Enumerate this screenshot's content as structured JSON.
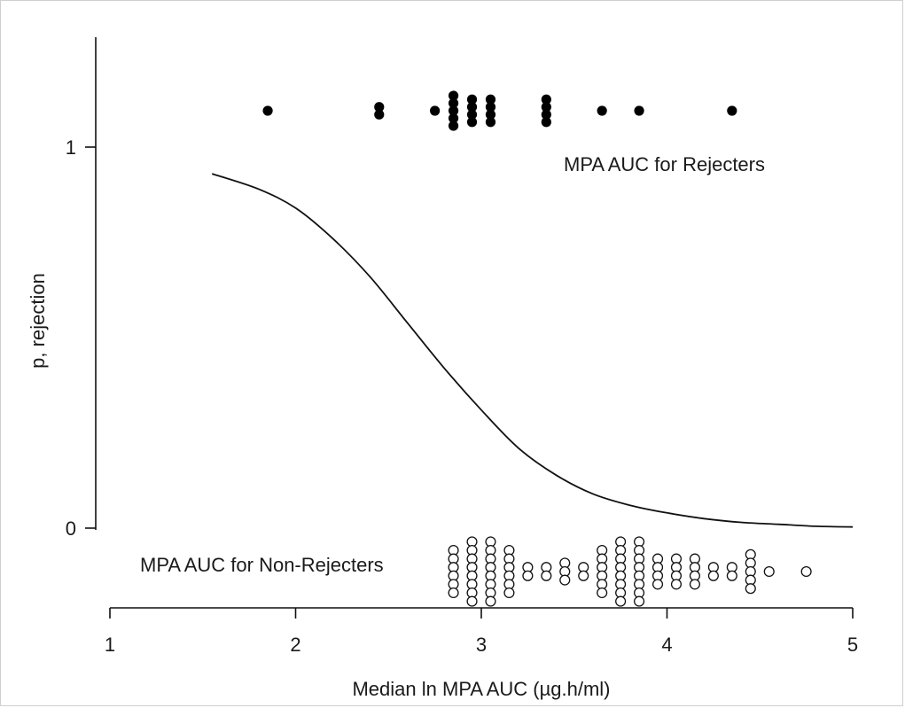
{
  "chart_data": {
    "type": "scatter",
    "xlabel": "Median ln MPA AUC (µg.h/ml)",
    "ylabel": "p, rejection",
    "xlim": [
      1,
      5
    ],
    "ylim": [
      0,
      1
    ],
    "x_ticks": [
      1,
      2,
      3,
      4,
      5
    ],
    "y_ticks": [
      0,
      1
    ],
    "x_tick_labels": [
      "1",
      "2",
      "3",
      "4",
      "5"
    ],
    "y_tick_labels": [
      "0",
      "1"
    ],
    "annotations": {
      "rejecters": "MPA AUC for Rejecters",
      "non_rejecters": "MPA AUC for Non-Rejecters"
    },
    "curve": {
      "x": [
        1.55,
        1.8,
        2.0,
        2.2,
        2.4,
        2.6,
        2.8,
        3.0,
        3.2,
        3.4,
        3.6,
        3.8,
        4.0,
        4.2,
        4.4,
        4.6,
        4.8,
        5.0
      ],
      "y": [
        0.93,
        0.89,
        0.84,
        0.76,
        0.66,
        0.54,
        0.42,
        0.31,
        0.21,
        0.14,
        0.09,
        0.06,
        0.04,
        0.025,
        0.015,
        0.01,
        0.005,
        0.003
      ]
    },
    "rejecters": [
      {
        "x": 1.85,
        "count": 1
      },
      {
        "x": 2.45,
        "count": 2
      },
      {
        "x": 2.75,
        "count": 1
      },
      {
        "x": 2.85,
        "count": 5
      },
      {
        "x": 2.95,
        "count": 4
      },
      {
        "x": 3.05,
        "count": 4
      },
      {
        "x": 3.35,
        "count": 4
      },
      {
        "x": 3.65,
        "count": 1
      },
      {
        "x": 3.85,
        "count": 1
      },
      {
        "x": 4.35,
        "count": 1
      }
    ],
    "non_rejecters": [
      {
        "x": 2.85,
        "count": 6
      },
      {
        "x": 2.95,
        "count": 8
      },
      {
        "x": 3.05,
        "count": 8
      },
      {
        "x": 3.15,
        "count": 6
      },
      {
        "x": 3.25,
        "count": 2
      },
      {
        "x": 3.35,
        "count": 2
      },
      {
        "x": 3.45,
        "count": 3
      },
      {
        "x": 3.55,
        "count": 2
      },
      {
        "x": 3.65,
        "count": 6
      },
      {
        "x": 3.75,
        "count": 8
      },
      {
        "x": 3.85,
        "count": 8
      },
      {
        "x": 3.95,
        "count": 4
      },
      {
        "x": 4.05,
        "count": 4
      },
      {
        "x": 4.15,
        "count": 4
      },
      {
        "x": 4.25,
        "count": 2
      },
      {
        "x": 4.35,
        "count": 2
      },
      {
        "x": 4.45,
        "count": 5
      },
      {
        "x": 4.55,
        "count": 1
      },
      {
        "x": 4.75,
        "count": 1
      }
    ],
    "grid": false,
    "legend": "none"
  }
}
